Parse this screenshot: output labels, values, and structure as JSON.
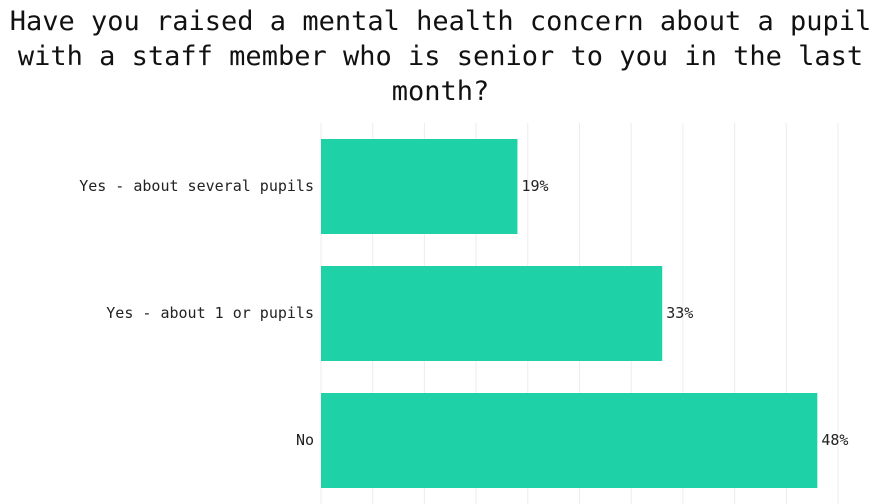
{
  "chart_data": {
    "type": "bar",
    "orientation": "horizontal",
    "title": "Have you raised a mental health concern about a pupil with a staff member who is senior to you in the last month?",
    "categories": [
      "Yes - about several pupils",
      "Yes - about 1 or pupils",
      "No"
    ],
    "values": [
      19,
      33,
      48
    ],
    "value_labels": [
      "19%",
      "33%",
      "48%"
    ],
    "color": "#1fd1a7",
    "xlim": [
      0,
      50
    ],
    "xticks": [
      0,
      5,
      10,
      15,
      20,
      25,
      30,
      35,
      40,
      45,
      50
    ],
    "grid": true
  }
}
